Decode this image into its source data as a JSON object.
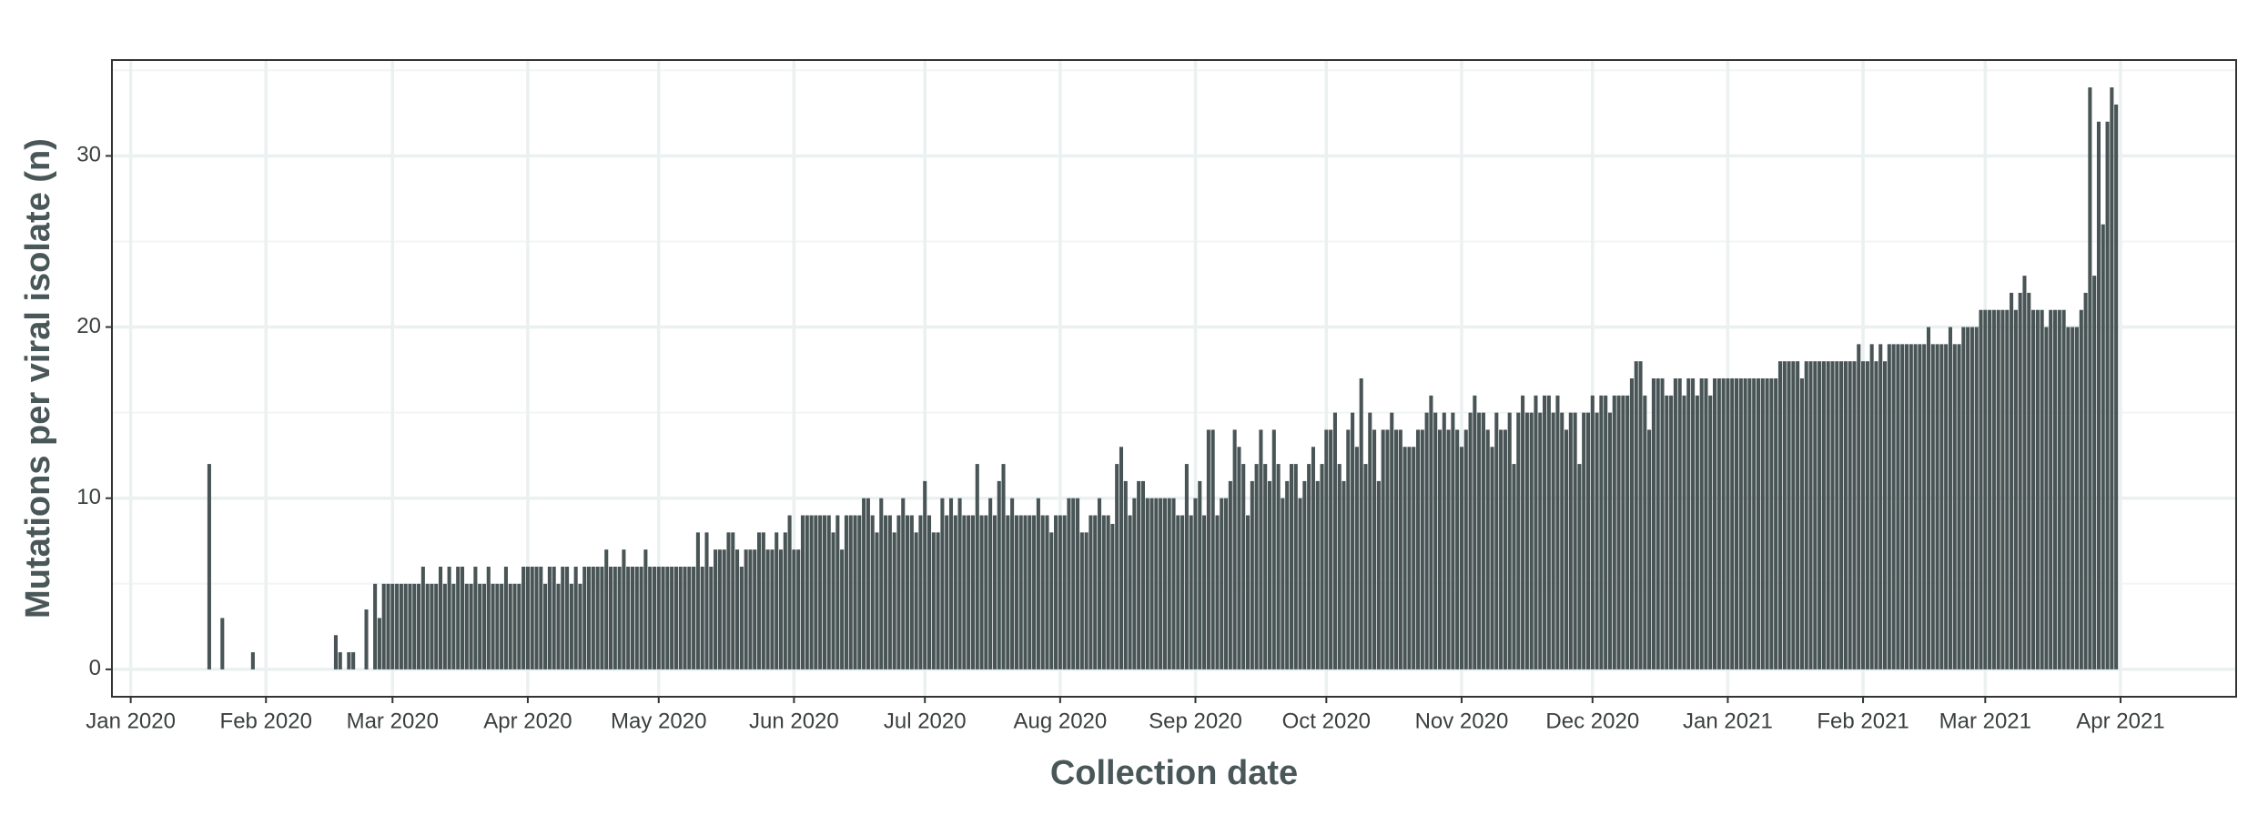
{
  "chart_data": {
    "type": "bar",
    "x_label": "Collection date",
    "y_label": "Mutations per viral isolate (n)",
    "color": "#485455",
    "grid": true,
    "xlim": [
      -4.3,
      482.5
    ],
    "ylim": [
      -1.6,
      35.6
    ],
    "xticks": [
      {
        "value": 0,
        "label": "Jan 2020"
      },
      {
        "value": 31,
        "label": "Feb 2020"
      },
      {
        "value": 60,
        "label": "Mar 2020"
      },
      {
        "value": 91,
        "label": "Apr 2020"
      },
      {
        "value": 121,
        "label": "May 2020"
      },
      {
        "value": 152,
        "label": "Jun 2020"
      },
      {
        "value": 182,
        "label": "Jul 2020"
      },
      {
        "value": 213,
        "label": "Aug 2020"
      },
      {
        "value": 244,
        "label": "Sep 2020"
      },
      {
        "value": 274,
        "label": "Oct 2020"
      },
      {
        "value": 305,
        "label": "Nov 2020"
      },
      {
        "value": 335,
        "label": "Dec 2020"
      },
      {
        "value": 366,
        "label": "Jan 2021"
      },
      {
        "value": 397,
        "label": "Feb 2021"
      },
      {
        "value": 425,
        "label": "Mar 2021"
      },
      {
        "value": 456,
        "label": "Apr 2021"
      }
    ],
    "yticks": [
      0,
      10,
      20,
      30
    ],
    "y_minor_ticks": [
      5,
      15,
      25,
      35
    ],
    "x": [
      18,
      21,
      28,
      47,
      48,
      50,
      51,
      54,
      56,
      57,
      58,
      59,
      60,
      61,
      62,
      63,
      64,
      65,
      66,
      67,
      68,
      69,
      70,
      71,
      72,
      73,
      74,
      75,
      76,
      77,
      78,
      79,
      80,
      81,
      82,
      83,
      84,
      85,
      86,
      87,
      88,
      89,
      90,
      91,
      92,
      93,
      94,
      95,
      96,
      97,
      98,
      99,
      100,
      101,
      102,
      103,
      104,
      105,
      106,
      107,
      108,
      109,
      110,
      111,
      112,
      113,
      114,
      115,
      116,
      117,
      118,
      119,
      120,
      121,
      122,
      123,
      124,
      125,
      126,
      127,
      128,
      129,
      130,
      131,
      132,
      133,
      134,
      135,
      136,
      137,
      138,
      139,
      140,
      141,
      142,
      143,
      144,
      145,
      146,
      147,
      148,
      149,
      150,
      151,
      152,
      153,
      154,
      155,
      156,
      157,
      158,
      159,
      160,
      161,
      162,
      163,
      164,
      165,
      166,
      167,
      168,
      169,
      170,
      171,
      172,
      173,
      174,
      175,
      176,
      177,
      178,
      179,
      180,
      181,
      182,
      183,
      184,
      185,
      186,
      187,
      188,
      189,
      190,
      191,
      192,
      193,
      194,
      195,
      196,
      197,
      198,
      199,
      200,
      201,
      202,
      203,
      204,
      205,
      206,
      207,
      208,
      209,
      210,
      211,
      212,
      213,
      214,
      215,
      216,
      217,
      218,
      219,
      220,
      221,
      222,
      223,
      224,
      225,
      226,
      227,
      228,
      229,
      230,
      231,
      232,
      233,
      234,
      235,
      236,
      237,
      238,
      239,
      240,
      241,
      242,
      243,
      244,
      245,
      246,
      247,
      248,
      249,
      250,
      251,
      252,
      253,
      254,
      255,
      256,
      257,
      258,
      259,
      260,
      261,
      262,
      263,
      264,
      265,
      266,
      267,
      268,
      269,
      270,
      271,
      272,
      273,
      274,
      275,
      276,
      277,
      278,
      279,
      280,
      281,
      282,
      283,
      284,
      285,
      286,
      287,
      288,
      289,
      290,
      291,
      292,
      293,
      294,
      295,
      296,
      297,
      298,
      299,
      300,
      301,
      302,
      303,
      304,
      305,
      306,
      307,
      308,
      309,
      310,
      311,
      312,
      313,
      314,
      315,
      316,
      317,
      318,
      319,
      320,
      321,
      322,
      323,
      324,
      325,
      326,
      327,
      328,
      329,
      330,
      331,
      332,
      333,
      334,
      335,
      336,
      337,
      338,
      339,
      340,
      341,
      342,
      343,
      344,
      345,
      346,
      347,
      348,
      349,
      350,
      351,
      352,
      353,
      354,
      355,
      356,
      357,
      358,
      359,
      360,
      361,
      362,
      363,
      364,
      365,
      366,
      367,
      368,
      369,
      370,
      371,
      372,
      373,
      374,
      375,
      376,
      377,
      378,
      379,
      380,
      381,
      382,
      383,
      384,
      385,
      386,
      387,
      388,
      389,
      390,
      391,
      392,
      393,
      394,
      395,
      396,
      397,
      398,
      399,
      400,
      401,
      402,
      403,
      404,
      405,
      406,
      407,
      408,
      409,
      410,
      411,
      412,
      413,
      414,
      415,
      416,
      417,
      418,
      419,
      420,
      421,
      422,
      423,
      424,
      425,
      426,
      427,
      428,
      429,
      430,
      431,
      432,
      433,
      434,
      435,
      436,
      437,
      438,
      439,
      440,
      441,
      442,
      443,
      444,
      445,
      446,
      447,
      448,
      449,
      450,
      451,
      452,
      453,
      454,
      455
    ],
    "values": [
      12,
      3,
      1,
      2,
      1,
      1,
      1,
      3.5,
      5,
      3,
      5,
      5,
      5,
      5,
      5,
      5,
      5,
      5,
      5,
      6,
      5,
      5,
      5,
      6,
      5,
      6,
      5,
      6,
      6,
      5,
      5,
      6,
      5,
      5,
      6,
      5,
      5,
      5,
      6,
      5,
      5,
      5,
      6,
      6,
      6,
      6,
      6,
      5,
      6,
      6,
      5,
      6,
      6,
      5,
      6,
      5,
      6,
      6,
      6,
      6,
      6,
      7,
      6,
      6,
      6,
      7,
      6,
      6,
      6,
      6,
      7,
      6,
      6,
      6,
      6,
      6,
      6,
      6,
      6,
      6,
      6,
      6,
      8,
      6,
      8,
      6,
      7,
      7,
      7,
      8,
      8,
      7,
      6,
      7,
      7,
      7,
      8,
      8,
      7,
      7,
      8,
      7,
      8,
      9,
      7,
      7,
      9,
      9,
      9,
      9,
      9,
      9,
      9,
      8,
      9,
      7,
      9,
      9,
      9,
      9,
      10,
      10,
      9,
      8,
      10,
      9,
      9,
      8,
      9,
      10,
      9,
      9,
      8,
      9,
      11,
      9,
      8,
      8,
      10,
      9,
      10,
      9,
      10,
      9,
      9,
      9,
      12,
      9,
      9,
      10,
      9,
      11,
      12,
      9,
      10,
      9,
      9,
      9,
      9,
      9,
      10,
      9,
      9,
      8,
      9,
      9,
      9,
      10,
      10,
      10,
      8,
      8,
      9,
      9,
      10,
      9,
      9,
      8.5,
      12,
      13,
      11,
      9,
      10,
      11,
      11,
      10,
      10,
      10,
      10,
      10,
      10,
      10,
      9,
      9,
      12,
      9,
      10,
      11,
      9,
      14,
      14,
      9,
      10,
      10,
      11,
      14,
      13,
      12,
      9,
      11,
      12,
      14,
      12,
      11,
      14,
      12,
      10,
      11,
      12,
      12,
      10,
      11,
      12,
      13,
      11,
      12,
      14,
      14,
      15,
      12,
      11,
      14,
      15,
      13,
      17,
      12,
      15,
      14,
      11,
      14,
      14,
      15,
      14,
      14,
      13,
      13,
      13,
      14,
      14,
      15,
      16,
      15,
      14,
      15,
      14,
      15,
      14,
      13,
      14,
      15,
      16,
      15,
      15,
      14,
      13,
      15,
      14,
      14,
      15,
      12,
      15,
      16,
      15,
      15,
      16,
      15,
      16,
      16,
      15,
      16,
      15,
      14,
      15,
      15,
      12,
      15,
      15,
      16,
      15,
      16,
      16,
      15,
      16,
      16,
      16,
      16,
      17,
      18,
      18,
      16,
      14,
      17,
      17,
      17,
      16,
      16,
      17,
      17,
      16,
      17,
      17,
      16,
      17,
      17,
      16,
      17,
      17,
      17,
      17,
      17,
      17,
      17,
      17,
      17,
      17,
      17,
      17,
      17,
      17,
      17,
      18,
      18,
      18,
      18,
      18,
      17,
      18,
      18,
      18,
      18,
      18,
      18,
      18,
      18,
      18,
      18,
      18,
      18,
      19,
      18,
      18,
      19,
      18,
      19,
      18,
      19,
      19,
      19,
      19,
      19,
      19,
      19,
      19,
      19,
      20,
      19,
      19,
      19,
      19,
      20,
      19,
      19,
      20,
      20,
      20,
      20,
      21,
      21,
      21,
      21,
      21,
      21,
      21,
      22,
      21,
      22,
      23,
      22,
      21,
      21,
      21,
      20,
      21,
      21,
      21,
      21,
      20,
      20,
      20,
      21,
      22,
      34,
      23,
      32,
      26,
      32,
      34,
      33
    ]
  }
}
